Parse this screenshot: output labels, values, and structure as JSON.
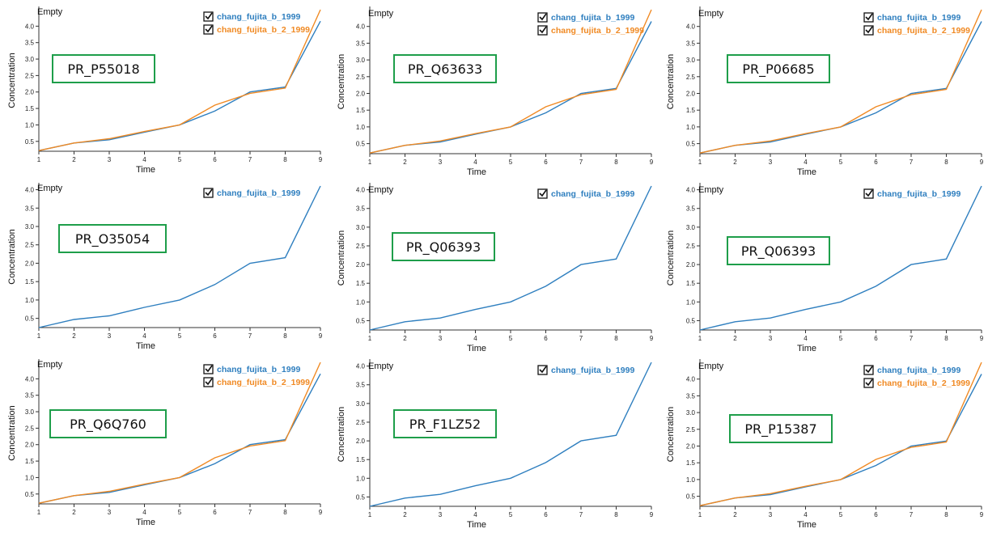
{
  "colors": {
    "series_1": "#2f7fbf",
    "series_2": "#f08a24",
    "box_border": "#1e9e4a",
    "axis": "#333333"
  },
  "chart_data": [
    {
      "type": "line",
      "panel_title": "Empty",
      "protein_id": "PR_P55018",
      "xlabel": "Time",
      "ylabel": "Concentration",
      "x": [
        1,
        2,
        3,
        4,
        5,
        6,
        7,
        8,
        9
      ],
      "xlim": [
        1,
        9
      ],
      "ylim": [
        0.2,
        4.5
      ],
      "yticks": [
        "0.5",
        "1.0",
        "1.5",
        "2.0",
        "2.5",
        "3.0",
        "3.5",
        "4.0"
      ],
      "xticks": [
        "1",
        "2",
        "3",
        "4",
        "5",
        "6",
        "7",
        "8",
        "9"
      ],
      "series": [
        {
          "name": "chang_fujita_b_1999",
          "checked": true,
          "values": [
            0.22,
            0.45,
            0.55,
            0.78,
            1.0,
            1.42,
            2.0,
            2.15,
            4.15
          ]
        },
        {
          "name": "chang_fujita_b_2_1999",
          "checked": true,
          "values": [
            0.22,
            0.45,
            0.58,
            0.8,
            1.0,
            1.6,
            1.96,
            2.12,
            4.5
          ]
        }
      ]
    },
    {
      "type": "line",
      "panel_title": "Empty",
      "protein_id": "PR_Q63633",
      "xlabel": "Time",
      "ylabel": "Concentration",
      "x": [
        1,
        2,
        3,
        4,
        5,
        6,
        7,
        8,
        9
      ],
      "xlim": [
        1,
        9
      ],
      "ylim": [
        0.2,
        4.5
      ],
      "yticks": [
        "0.5",
        "1.0",
        "1.5",
        "2.0",
        "2.5",
        "3.0",
        "3.5",
        "4.0"
      ],
      "xticks": [
        "1",
        "2",
        "3",
        "4",
        "5",
        "6",
        "7",
        "8",
        "9"
      ],
      "series": [
        {
          "name": "chang_fujita_b_1999",
          "checked": true,
          "values": [
            0.22,
            0.45,
            0.55,
            0.78,
            1.0,
            1.42,
            2.0,
            2.15,
            4.15
          ]
        },
        {
          "name": "chang_fujita_b_2_1999",
          "checked": true,
          "values": [
            0.22,
            0.45,
            0.58,
            0.8,
            1.0,
            1.6,
            1.96,
            2.12,
            4.5
          ]
        }
      ]
    },
    {
      "type": "line",
      "panel_title": "Empty",
      "protein_id": "PR_P06685",
      "xlabel": "Time",
      "ylabel": "Concentration",
      "x": [
        1,
        2,
        3,
        4,
        5,
        6,
        7,
        8,
        9
      ],
      "xlim": [
        1,
        9
      ],
      "ylim": [
        0.2,
        4.5
      ],
      "yticks": [
        "0.5",
        "1.0",
        "1.5",
        "2.0",
        "2.5",
        "3.0",
        "3.5",
        "4.0"
      ],
      "xticks": [
        "1",
        "2",
        "3",
        "4",
        "5",
        "6",
        "7",
        "8",
        "9"
      ],
      "series": [
        {
          "name": "chang_fujita_b_1999",
          "checked": true,
          "values": [
            0.22,
            0.45,
            0.55,
            0.78,
            1.0,
            1.42,
            2.0,
            2.15,
            4.15
          ]
        },
        {
          "name": "chang_fujita_b_2_1999",
          "checked": true,
          "values": [
            0.22,
            0.45,
            0.58,
            0.8,
            1.0,
            1.6,
            1.96,
            2.12,
            4.5
          ]
        }
      ]
    },
    {
      "type": "line",
      "panel_title": "Empty",
      "protein_id": "PR_O35054",
      "xlabel": "Time",
      "ylabel": "Concentration",
      "x": [
        1,
        2,
        3,
        4,
        5,
        6,
        7,
        8,
        9
      ],
      "xlim": [
        1,
        9
      ],
      "ylim": [
        0.25,
        4.1
      ],
      "yticks": [
        "0.5",
        "1.0",
        "1.5",
        "2.0",
        "2.5",
        "3.0",
        "3.5",
        "4.0"
      ],
      "xticks": [
        "1",
        "2",
        "3",
        "4",
        "5",
        "6",
        "7",
        "8",
        "9"
      ],
      "series": [
        {
          "name": "chang_fujita_b_1999",
          "checked": true,
          "values": [
            0.25,
            0.47,
            0.57,
            0.8,
            1.0,
            1.42,
            2.0,
            2.15,
            4.1
          ]
        }
      ]
    },
    {
      "type": "line",
      "panel_title": "Empty",
      "protein_id": "PR_Q06393",
      "xlabel": "Time",
      "ylabel": "Concentration",
      "x": [
        1,
        2,
        3,
        4,
        5,
        6,
        7,
        8,
        9
      ],
      "xlim": [
        1,
        9
      ],
      "ylim": [
        0.25,
        4.1
      ],
      "yticks": [
        "0.5",
        "1.0",
        "1.5",
        "2.0",
        "2.5",
        "3.0",
        "3.5",
        "4.0"
      ],
      "xticks": [
        "1",
        "2",
        "3",
        "4",
        "5",
        "6",
        "7",
        "8",
        "9"
      ],
      "series": [
        {
          "name": "chang_fujita_b_1999",
          "checked": true,
          "values": [
            0.25,
            0.47,
            0.57,
            0.8,
            1.0,
            1.42,
            2.0,
            2.15,
            4.1
          ]
        }
      ]
    },
    {
      "type": "line",
      "panel_title": "Empty",
      "protein_id": "PR_Q06393",
      "xlabel": "Time",
      "ylabel": "Concentration",
      "x": [
        1,
        2,
        3,
        4,
        5,
        6,
        7,
        8,
        9
      ],
      "xlim": [
        1,
        9
      ],
      "ylim": [
        0.25,
        4.1
      ],
      "yticks": [
        "0.5",
        "1.0",
        "1.5",
        "2.0",
        "2.5",
        "3.0",
        "3.5",
        "4.0"
      ],
      "xticks": [
        "1",
        "2",
        "3",
        "4",
        "5",
        "6",
        "7",
        "8",
        "9"
      ],
      "series": [
        {
          "name": "chang_fujita_b_1999",
          "checked": true,
          "values": [
            0.25,
            0.47,
            0.57,
            0.8,
            1.0,
            1.42,
            2.0,
            2.15,
            4.1
          ]
        }
      ]
    },
    {
      "type": "line",
      "panel_title": "Empty",
      "protein_id": "PR_Q6Q760",
      "xlabel": "Time",
      "ylabel": "Concentration",
      "x": [
        1,
        2,
        3,
        4,
        5,
        6,
        7,
        8,
        9
      ],
      "xlim": [
        1,
        9
      ],
      "ylim": [
        0.2,
        4.5
      ],
      "yticks": [
        "0.5",
        "1.0",
        "1.5",
        "2.0",
        "2.5",
        "3.0",
        "3.5",
        "4.0"
      ],
      "xticks": [
        "1",
        "2",
        "3",
        "4",
        "5",
        "6",
        "7",
        "8",
        "9"
      ],
      "series": [
        {
          "name": "chang_fujita_b_1999",
          "checked": true,
          "values": [
            0.22,
            0.45,
            0.55,
            0.78,
            1.0,
            1.42,
            2.0,
            2.15,
            4.15
          ]
        },
        {
          "name": "chang_fujita_b_2_1999",
          "checked": true,
          "values": [
            0.22,
            0.45,
            0.58,
            0.8,
            1.0,
            1.6,
            1.96,
            2.12,
            4.5
          ]
        }
      ]
    },
    {
      "type": "line",
      "panel_title": "Empty",
      "protein_id": "PR_F1LZ52",
      "xlabel": "Time",
      "ylabel": "Concentration",
      "x": [
        1,
        2,
        3,
        4,
        5,
        6,
        7,
        8,
        9
      ],
      "xlim": [
        1,
        9
      ],
      "ylim": [
        0.25,
        4.1
      ],
      "yticks": [
        "0.5",
        "1.0",
        "1.5",
        "2.0",
        "2.5",
        "3.0",
        "3.5",
        "4.0"
      ],
      "xticks": [
        "1",
        "2",
        "3",
        "4",
        "5",
        "6",
        "7",
        "8",
        "9"
      ],
      "series": [
        {
          "name": "chang_fujita_b_1999",
          "checked": true,
          "values": [
            0.25,
            0.47,
            0.57,
            0.8,
            1.0,
            1.42,
            2.0,
            2.15,
            4.1
          ]
        }
      ]
    },
    {
      "type": "line",
      "panel_title": "Empty",
      "protein_id": "PR_P15387",
      "xlabel": "Time",
      "ylabel": "Concentration",
      "x": [
        1,
        2,
        3,
        4,
        5,
        6,
        7,
        8,
        9
      ],
      "xlim": [
        1,
        9
      ],
      "ylim": [
        0.2,
        4.5
      ],
      "yticks": [
        "0.5",
        "1.0",
        "1.5",
        "2.0",
        "2.5",
        "3.0",
        "3.5",
        "4.0"
      ],
      "xticks": [
        "1",
        "2",
        "3",
        "4",
        "5",
        "6",
        "7",
        "8",
        "9"
      ],
      "series": [
        {
          "name": "chang_fujita_b_1999",
          "checked": true,
          "values": [
            0.22,
            0.45,
            0.55,
            0.78,
            1.0,
            1.42,
            2.0,
            2.15,
            4.15
          ]
        },
        {
          "name": "chang_fujita_b_2_1999",
          "checked": true,
          "values": [
            0.22,
            0.45,
            0.58,
            0.8,
            1.0,
            1.6,
            1.96,
            2.12,
            4.5
          ]
        }
      ]
    }
  ]
}
